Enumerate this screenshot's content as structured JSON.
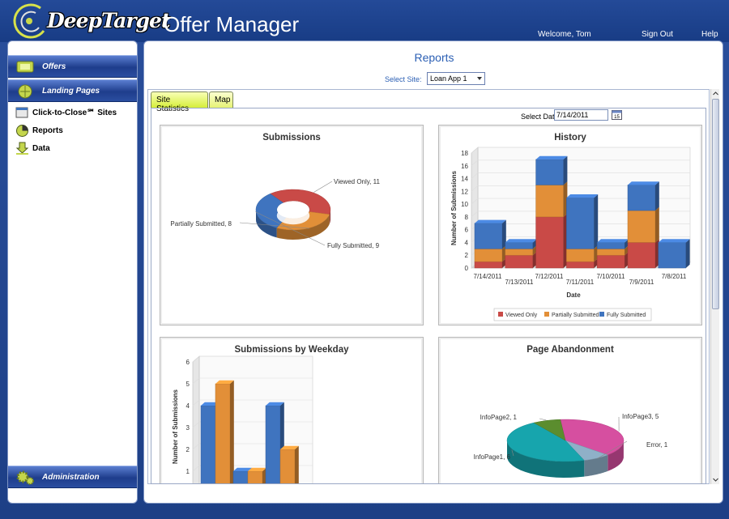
{
  "header": {
    "logo_text": "DeepTarget",
    "app_title": "Offer Manager",
    "welcome": "Welcome, Tom",
    "sign_out": "Sign Out",
    "help": "Help"
  },
  "sidebar": {
    "offers": "Offers",
    "landing_pages": "Landing Pages",
    "links": [
      "Click-to-Close℠ Sites",
      "Reports",
      "Data"
    ],
    "administration": "Administration"
  },
  "page": {
    "title": "Reports",
    "select_site_label": "Select Site:",
    "selected_site": "Loan App 1",
    "tabs": [
      "Site Statistics",
      "Map"
    ],
    "select_date_label": "Select Date",
    "selected_date": "7/14/2011"
  },
  "colors": {
    "viewed": "#c94a47",
    "partial": "#e28f38",
    "fully": "#3f74bf",
    "accent": "#2b5fb4"
  },
  "chart_data": [
    {
      "type": "pie",
      "title": "Submissions",
      "slices": [
        {
          "label": "Viewed Only, 11",
          "value": 11
        },
        {
          "label": "Partially Submitted, 8",
          "value": 8
        },
        {
          "label": "Fully Submitted, 9",
          "value": 9
        }
      ]
    },
    {
      "type": "bar",
      "title": "History",
      "xlabel": "Date",
      "ylabel": "Number of Submissions",
      "ylim": [
        0,
        18
      ],
      "yticks": [
        0,
        2,
        4,
        6,
        8,
        10,
        12,
        14,
        16,
        18
      ],
      "categories": [
        "7/14/2011",
        "7/13/2011",
        "7/12/2011",
        "7/11/2011",
        "7/10/2011",
        "7/9/2011",
        "7/8/2011"
      ],
      "series": [
        {
          "name": "Viewed Only",
          "values": [
            1,
            2,
            8,
            1,
            2,
            4,
            0
          ]
        },
        {
          "name": "Partially Submitted",
          "values": [
            2,
            1,
            5,
            2,
            1,
            5,
            0
          ]
        },
        {
          "name": "Fully Submitted",
          "values": [
            4,
            1,
            4,
            8,
            1,
            4,
            4
          ]
        }
      ],
      "legend_position": "bottom"
    },
    {
      "type": "bar",
      "title": "Submissions by Weekday",
      "ylabel": "Number of Submissions",
      "ylim": [
        0,
        6
      ],
      "yticks": [
        1,
        2,
        3,
        4,
        5,
        6
      ],
      "series": [
        {
          "values": [
            4,
            1,
            4
          ]
        },
        {
          "values": [
            5,
            1,
            2
          ]
        }
      ]
    },
    {
      "type": "pie",
      "title": "Page Abandonment",
      "slices": [
        {
          "label": "InfoPage3, 5",
          "value": 5
        },
        {
          "label": "Error, 1",
          "value": 1
        },
        {
          "label": "InfoPage1, 6",
          "value": 6
        },
        {
          "label": "InfoPage2, 1",
          "value": 1
        }
      ]
    }
  ]
}
